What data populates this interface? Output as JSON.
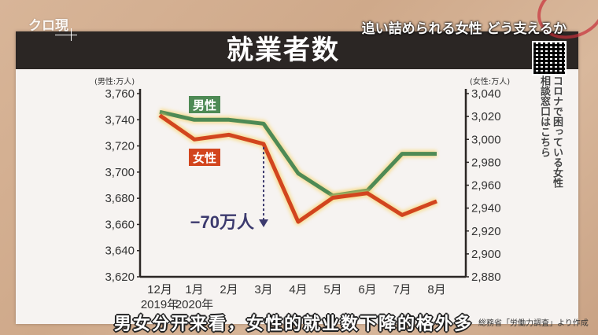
{
  "header": {
    "logo": "クロ現",
    "program_title": "追い詰められる女性 どう支えるか",
    "chart_title": "就業者数"
  },
  "side": {
    "qr_icon": "qr-code-icon",
    "line1": "コロナで困っている女性",
    "line2": "相談窓口はこちら"
  },
  "subtitle": "男女分开来看，女性的就业数下降的格外多",
  "source": "総務省「労働力調査」より作成",
  "chart_data": {
    "type": "line",
    "title": "就業者数",
    "categories": [
      "12月",
      "1月",
      "2月",
      "3月",
      "4月",
      "5月",
      "6月",
      "7月",
      "8月"
    ],
    "category_years": [
      "2019年",
      "2020年",
      "",
      "",
      "",
      "",
      "",
      "",
      ""
    ],
    "y_left": {
      "label": "(男性:万人)",
      "range": [
        3620,
        3760
      ],
      "ticks": [
        "3,620",
        "3,640",
        "3,660",
        "3,680",
        "3,700",
        "3,720",
        "3,740",
        "3,760"
      ]
    },
    "y_right": {
      "label": "(女性:万人)",
      "range": [
        2880,
        3040
      ],
      "ticks": [
        "2,880",
        "2,900",
        "2,920",
        "2,940",
        "2,960",
        "2,980",
        "3,000",
        "3,020",
        "3,040"
      ]
    },
    "grid": false,
    "series": [
      {
        "name": "男性",
        "axis": "left",
        "color": "#4e8a55",
        "values": [
          3746,
          3740,
          3740,
          3737,
          3699,
          3682,
          3686,
          3714,
          3714
        ]
      },
      {
        "name": "女性",
        "axis": "right",
        "color": "#d2451e",
        "values": [
          3021,
          3000,
          3004,
          2996,
          2928,
          2949,
          2953,
          2934,
          2946
        ]
      }
    ],
    "annotation": {
      "text": "−70万人",
      "at": "3月",
      "color": "#3c3a6e"
    }
  }
}
